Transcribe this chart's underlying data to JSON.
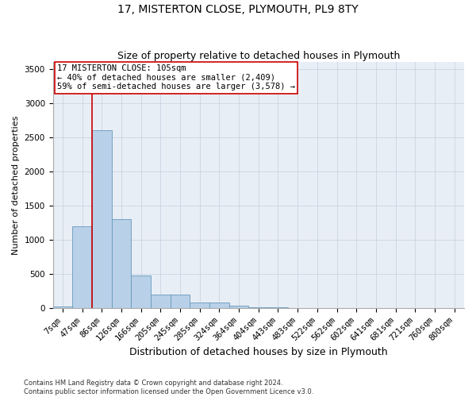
{
  "title": "17, MISTERTON CLOSE, PLYMOUTH, PL9 8TY",
  "subtitle": "Size of property relative to detached houses in Plymouth",
  "xlabel": "Distribution of detached houses by size in Plymouth",
  "ylabel": "Number of detached properties",
  "bin_labels": [
    "7sqm",
    "47sqm",
    "86sqm",
    "126sqm",
    "166sqm",
    "205sqm",
    "245sqm",
    "285sqm",
    "324sqm",
    "364sqm",
    "404sqm",
    "443sqm",
    "483sqm",
    "522sqm",
    "562sqm",
    "602sqm",
    "641sqm",
    "681sqm",
    "721sqm",
    "760sqm",
    "800sqm"
  ],
  "bar_values": [
    30,
    1200,
    2600,
    1300,
    480,
    200,
    200,
    85,
    85,
    40,
    10,
    10,
    5,
    5,
    2,
    2,
    1,
    1,
    1,
    1,
    1
  ],
  "bar_color": "#b8d0e8",
  "bar_edge_color": "#6699bb",
  "vline_color": "#cc0000",
  "annotation_text": "17 MISTERTON CLOSE: 105sqm\n← 40% of detached houses are smaller (2,409)\n59% of semi-detached houses are larger (3,578) →",
  "annotation_box_color": "#ffffff",
  "annotation_box_edge": "#cc0000",
  "ylim": [
    0,
    3600
  ],
  "yticks": [
    0,
    500,
    1000,
    1500,
    2000,
    2500,
    3000,
    3500
  ],
  "background_color": "#e8eef5",
  "footer_line1": "Contains HM Land Registry data © Crown copyright and database right 2024.",
  "footer_line2": "Contains public sector information licensed under the Open Government Licence v3.0.",
  "title_fontsize": 10,
  "subtitle_fontsize": 9,
  "xlabel_fontsize": 9,
  "ylabel_fontsize": 8,
  "tick_fontsize": 7.5,
  "annot_fontsize": 7.5
}
